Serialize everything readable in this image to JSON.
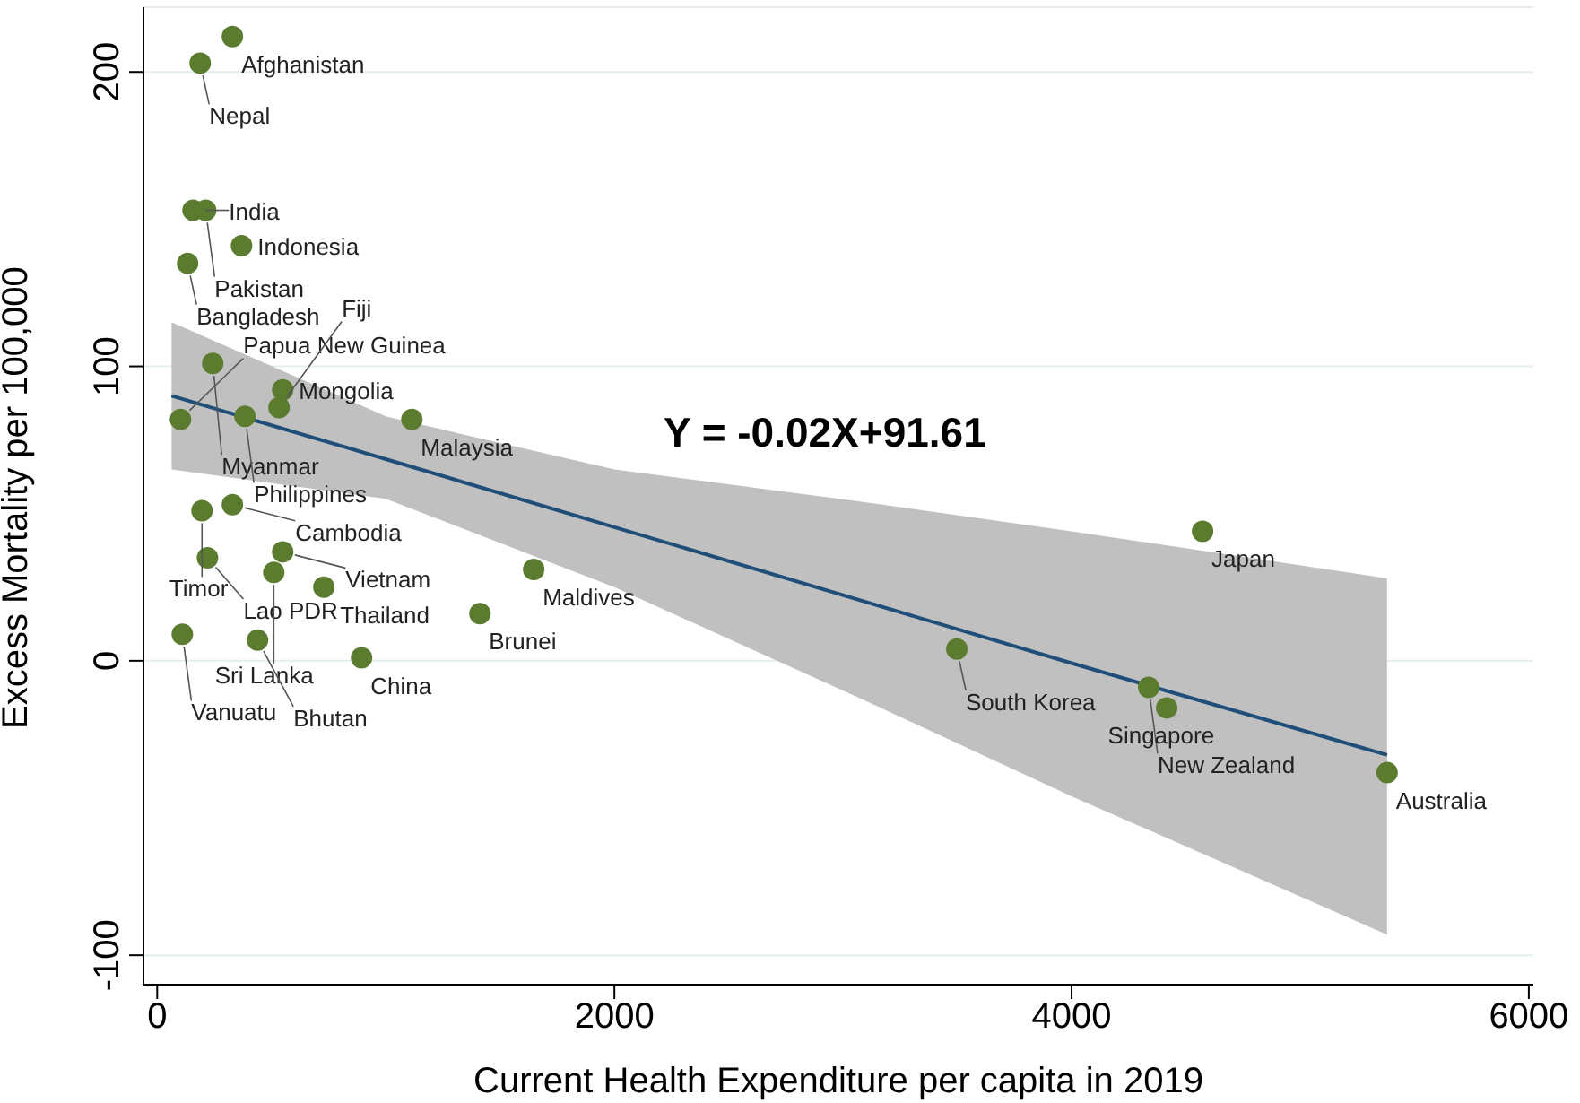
{
  "chart_data": {
    "type": "scatter",
    "xlabel": "Current Health Expenditure per capita in 2019",
    "ylabel": "Excess Mortality per 100,000",
    "xlim": [
      -60,
      6020
    ],
    "ylim": [
      -110,
      222
    ],
    "xticks": [
      0,
      2000,
      4000,
      6000
    ],
    "yticks": [
      -100,
      0,
      100,
      200
    ],
    "grid": "y",
    "series": [
      {
        "color": "#5b7b2f",
        "marker": "circle",
        "x": [
          329,
          188,
          157,
          212,
          369,
          133,
          243,
          102,
          384,
          549,
          533,
          1114,
          196,
          329,
          220,
          549,
          510,
          729,
          110,
          439,
          894,
          1412,
          1647,
          4573,
          3498,
          4337,
          4416,
          5380
        ],
        "values": [
          212,
          203,
          153,
          153,
          141,
          135,
          101,
          82,
          83,
          92,
          86,
          82,
          51,
          53,
          35,
          37,
          30,
          25,
          9,
          7,
          1,
          16,
          31,
          44,
          4,
          -9,
          -16,
          -38
        ]
      },
      {
        "type": "line",
        "color": "#1f4e79",
        "x": [
          63,
          1000,
          2000,
          3082,
          4000,
          5380
        ],
        "values": [
          90,
          68.5,
          45.4,
          20.4,
          -0.8,
          -32
        ],
        "lower": [
          65,
          55,
          25,
          -13,
          -46,
          -93
        ],
        "upper": [
          115,
          83,
          65,
          54,
          44,
          28
        ]
      }
    ],
    "annotations": [
      "Y = -0.02X+91.61",
      {
        "text": "Afghanistan",
        "x": 329,
        "y": 212
      },
      {
        "text": "Nepal",
        "x": 188,
        "y": 203
      },
      {
        "text": "India",
        "x": 157,
        "y": 153
      },
      {
        "text": "Pakistan",
        "x": 212,
        "y": 153
      },
      {
        "text": "Indonesia",
        "x": 369,
        "y": 141
      },
      {
        "text": "Bangladesh",
        "x": 133,
        "y": 135
      },
      {
        "text": "Myanmar",
        "x": 243,
        "y": 101
      },
      {
        "text": "Papua New Guinea",
        "x": 102,
        "y": 82
      },
      {
        "text": "Philippines",
        "x": 384,
        "y": 83
      },
      {
        "text": "Mongolia",
        "x": 549,
        "y": 92
      },
      {
        "text": "Fiji",
        "x": 533,
        "y": 86
      },
      {
        "text": "Malaysia",
        "x": 1114,
        "y": 82
      },
      {
        "text": "Timor",
        "x": 196,
        "y": 51
      },
      {
        "text": "Cambodia",
        "x": 329,
        "y": 53
      },
      {
        "text": "Lao PDR",
        "x": 220,
        "y": 35
      },
      {
        "text": "Vietnam",
        "x": 549,
        "y": 37
      },
      {
        "text": "Sri Lanka",
        "x": 510,
        "y": 30
      },
      {
        "text": "Thailand",
        "x": 729,
        "y": 25
      },
      {
        "text": "Vanuatu",
        "x": 110,
        "y": 9
      },
      {
        "text": "Bhutan",
        "x": 439,
        "y": 7
      },
      {
        "text": "China",
        "x": 894,
        "y": 1
      },
      {
        "text": "Brunei",
        "x": 1412,
        "y": 16
      },
      {
        "text": "Maldives",
        "x": 1647,
        "y": 31
      },
      {
        "text": "Japan",
        "x": 4573,
        "y": 44
      },
      {
        "text": "South Korea",
        "x": 3498,
        "y": 4
      },
      {
        "text": "New Zealand",
        "x": 4337,
        "y": -9
      },
      {
        "text": "Singapore",
        "x": 4416,
        "y": -16
      },
      {
        "text": "Australia",
        "x": 5380,
        "y": -38
      }
    ]
  }
}
